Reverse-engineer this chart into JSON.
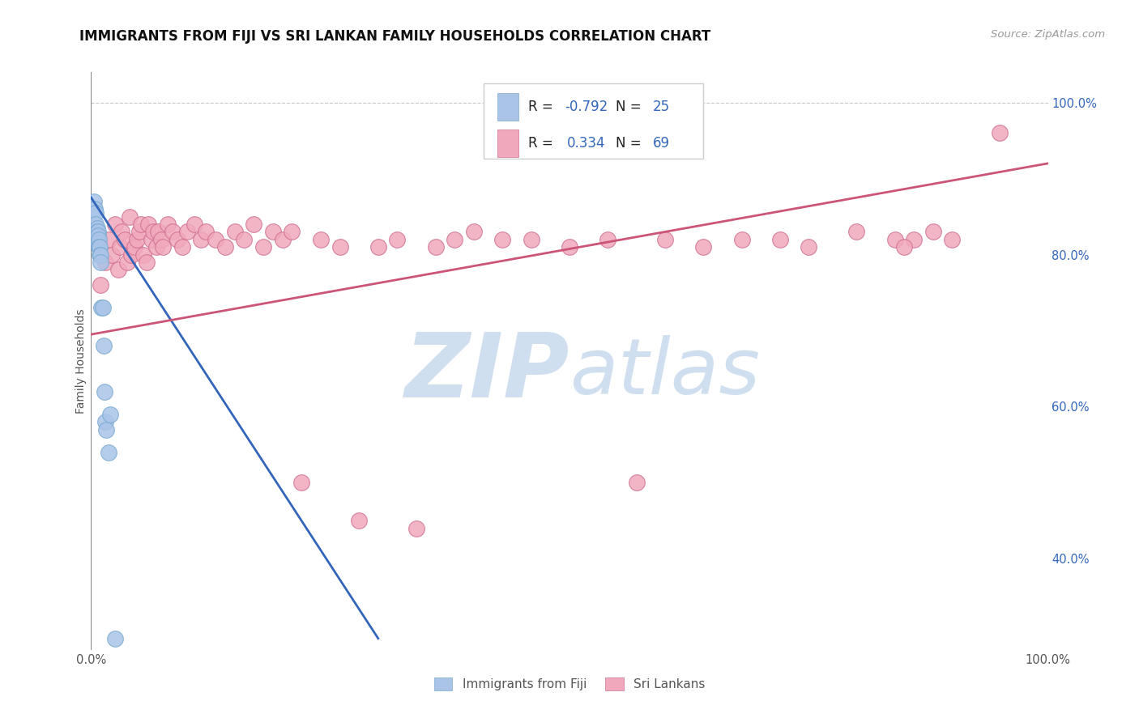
{
  "title": "IMMIGRANTS FROM FIJI VS SRI LANKAN FAMILY HOUSEHOLDS CORRELATION CHART",
  "source_text": "Source: ZipAtlas.com",
  "ylabel_left": "Family Households",
  "x_min": 0.0,
  "x_max": 1.0,
  "y_min": 0.28,
  "y_max": 1.04,
  "right_yticks": [
    0.4,
    0.6,
    0.8,
    1.0
  ],
  "right_yticklabels": [
    "40.0%",
    "60.0%",
    "80.0%",
    "100.0%"
  ],
  "fiji_color": "#aac4e8",
  "fiji_color_edge": "#7aaad0",
  "srilanka_color": "#f0a8bc",
  "srilanka_color_edge": "#d07090",
  "fiji_R": -0.792,
  "fiji_N": 25,
  "srilanka_R": 0.334,
  "srilanka_N": 69,
  "fiji_line_color": "#3366bb",
  "srilanka_line_color": "#cc5577",
  "watermark_zip": "ZIP",
  "watermark_atlas": "atlas",
  "watermark_color": "#d0dff0",
  "legend_label_fiji": "Immigrants from Fiji",
  "legend_label_srilanka": "Sri Lankans",
  "fiji_scatter_x": [
    0.003,
    0.004,
    0.005,
    0.005,
    0.006,
    0.006,
    0.006,
    0.007,
    0.007,
    0.007,
    0.008,
    0.008,
    0.009,
    0.009,
    0.01,
    0.01,
    0.011,
    0.012,
    0.013,
    0.014,
    0.015,
    0.016,
    0.018,
    0.02,
    0.025
  ],
  "fiji_scatter_y": [
    0.87,
    0.86,
    0.855,
    0.84,
    0.835,
    0.83,
    0.82,
    0.83,
    0.825,
    0.815,
    0.82,
    0.81,
    0.81,
    0.8,
    0.8,
    0.79,
    0.73,
    0.73,
    0.68,
    0.62,
    0.58,
    0.57,
    0.54,
    0.59,
    0.295
  ],
  "srilanka_scatter_x": [
    0.01,
    0.015,
    0.018,
    0.022,
    0.025,
    0.028,
    0.03,
    0.032,
    0.035,
    0.038,
    0.04,
    0.042,
    0.045,
    0.048,
    0.05,
    0.052,
    0.055,
    0.058,
    0.06,
    0.063,
    0.065,
    0.068,
    0.07,
    0.073,
    0.075,
    0.08,
    0.085,
    0.09,
    0.095,
    0.1,
    0.108,
    0.115,
    0.12,
    0.13,
    0.14,
    0.15,
    0.16,
    0.17,
    0.18,
    0.19,
    0.2,
    0.21,
    0.22,
    0.24,
    0.26,
    0.28,
    0.3,
    0.32,
    0.34,
    0.36,
    0.38,
    0.4,
    0.43,
    0.46,
    0.5,
    0.54,
    0.57,
    0.6,
    0.64,
    0.68,
    0.72,
    0.75,
    0.8,
    0.84,
    0.86,
    0.88,
    0.9,
    0.85,
    0.95
  ],
  "srilanka_scatter_y": [
    0.76,
    0.79,
    0.82,
    0.8,
    0.84,
    0.78,
    0.81,
    0.83,
    0.82,
    0.79,
    0.85,
    0.8,
    0.81,
    0.82,
    0.83,
    0.84,
    0.8,
    0.79,
    0.84,
    0.82,
    0.83,
    0.81,
    0.83,
    0.82,
    0.81,
    0.84,
    0.83,
    0.82,
    0.81,
    0.83,
    0.84,
    0.82,
    0.83,
    0.82,
    0.81,
    0.83,
    0.82,
    0.84,
    0.81,
    0.83,
    0.82,
    0.83,
    0.5,
    0.82,
    0.81,
    0.45,
    0.81,
    0.82,
    0.44,
    0.81,
    0.82,
    0.83,
    0.82,
    0.82,
    0.81,
    0.82,
    0.5,
    0.82,
    0.81,
    0.82,
    0.82,
    0.81,
    0.83,
    0.82,
    0.82,
    0.83,
    0.82,
    0.81,
    0.96
  ],
  "fiji_trendline_x": [
    0.0,
    0.3
  ],
  "fiji_trendline_y": [
    0.875,
    0.295
  ],
  "srilanka_trendline_x": [
    0.0,
    1.0
  ],
  "srilanka_trendline_y": [
    0.695,
    0.92
  ],
  "background_color": "#ffffff",
  "grid_color": "#c8c8c8",
  "title_fontsize": 12,
  "axis_label_fontsize": 10,
  "tick_fontsize": 10.5,
  "source_fontsize": 9.5,
  "legend_text_color": "#222222",
  "legend_number_color": "#3366bb"
}
